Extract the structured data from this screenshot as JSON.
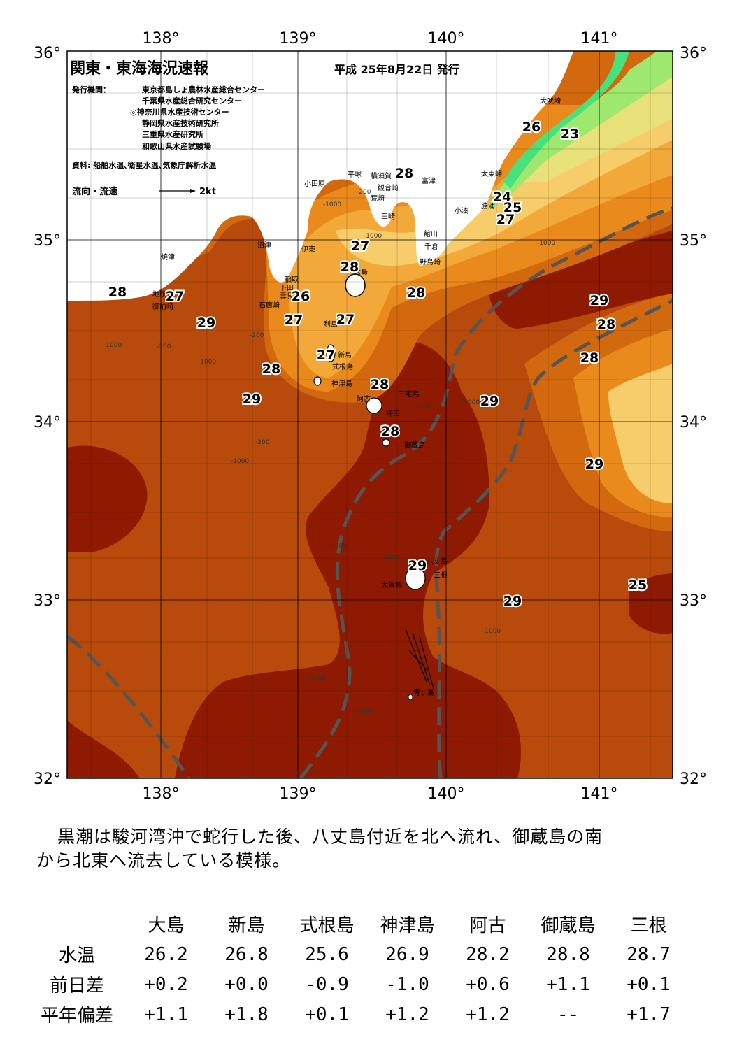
{
  "map": {
    "title": "関東・東海海況速報",
    "date": "平成 25年8月22日 発行",
    "issuer_label": "発行機関：",
    "issuers": [
      "東京都島しょ農林水産総合センター",
      "千葉県水産総合研究センター",
      "◎神奈川県水産技術センター",
      "静岡県水産技術研究所",
      "三重県水産研究所",
      "和歌山県水産試験場"
    ],
    "source": "資料: 船舶水温､衛星水温､気象庁解析水温",
    "flow_legend": "流向・流速",
    "flow_scale": "2kt",
    "lon_ticks": [
      "138°",
      "139°",
      "140°",
      "141°"
    ],
    "lat_ticks": [
      "36°",
      "35°",
      "34°",
      "33°",
      "32°"
    ],
    "temperature_labels": [
      "28",
      "27",
      "29",
      "26",
      "27",
      "27",
      "28",
      "27",
      "27",
      "28",
      "28",
      "28",
      "29",
      "28",
      "29",
      "29",
      "28",
      "28",
      "29",
      "29",
      "29",
      "25",
      "26",
      "23",
      "24",
      "25",
      "27",
      "28"
    ],
    "place_names": [
      "犬吠埼",
      "太東岬",
      "勝浦",
      "小湊",
      "館山",
      "千倉",
      "野島崎",
      "富津",
      "観音崎",
      "横須賀",
      "平塚",
      "荒崎",
      "三崎",
      "小田原",
      "沼津",
      "伊東",
      "大島",
      "焼津",
      "地頭方",
      "御前崎",
      "雲見",
      "石廊崎",
      "稲取",
      "下田",
      "利島",
      "新島",
      "式根島",
      "神津島",
      "阿古",
      "三宅島",
      "坪田",
      "御蔵島",
      "八丈島",
      "三根",
      "大賀郷",
      "青ヶ島"
    ],
    "depth_labels": [
      "-200",
      "-1000",
      "-1000",
      "-200",
      "-1000",
      "-200",
      "-1000",
      "-1000",
      "-200",
      "-1000",
      "-1000",
      "-1000",
      "-1000",
      "-1000",
      "-1000",
      "-1000",
      "-1000"
    ],
    "colors": {
      "t29": "#b84a0c",
      "t30": "#8f1a02",
      "t28": "#d2690e",
      "t27": "#ea8a1c",
      "t26": "#f3a83a",
      "t25": "#f7cc6a",
      "t24": "#e8e07a",
      "t23": "#9ee870",
      "t22": "#48e27c",
      "t21": "#6ee0ee",
      "kuroshio_line": "#555555"
    }
  },
  "summary": {
    "line1": "黒潮は駿河湾沖で蛇行した後、八丈島付近を北へ流れ、御蔵島の南",
    "line2": "から北東へ流去している模様。"
  },
  "table": {
    "locations": [
      "大島",
      "新島",
      "式根島",
      "神津島",
      "阿古",
      "御蔵島",
      "三根"
    ],
    "rows": [
      {
        "label": "水温",
        "values": [
          "26.2",
          "26.8",
          "25.6",
          "26.9",
          "28.2",
          "28.8",
          "28.7"
        ]
      },
      {
        "label": "前日差",
        "values": [
          "+0.2",
          "+0.0",
          "-0.9",
          "-1.0",
          "+0.6",
          "+1.1",
          "+0.1"
        ]
      },
      {
        "label": "平年偏差",
        "values": [
          "+1.1",
          "+1.8",
          "+0.1",
          "+1.2",
          "+1.2",
          "--",
          "+1.7"
        ]
      }
    ]
  }
}
